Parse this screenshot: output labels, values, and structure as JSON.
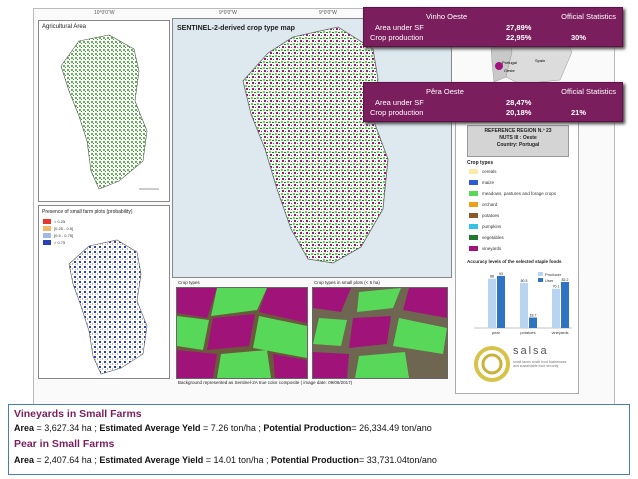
{
  "poster": {
    "coords_top": [
      "10°0'0\"W",
      "9°0'0\"W",
      "9°0'0\"W"
    ],
    "left_top_title": "Agricultural Area",
    "left_bottom_title": "Presence of small farm plots (probability)",
    "prob_legend": [
      {
        "label": "< 0.25",
        "color": "#e8352e"
      },
      {
        "label": "[0.25 - 0.5[",
        "color": "#f4b565"
      },
      {
        "label": "[0.5 - 0.75[",
        "color": "#9fb8e6"
      },
      {
        "label": "> 0.75",
        "color": "#2740b8"
      }
    ],
    "map_title": "SENTINEL-2-derived crop type map",
    "photo_left_title": "Crop types",
    "photo_right_title": "Crop types in small plots (< 5 ha)",
    "caption": "Background represented as Sentinel-2A true color composite ( image date: 09/06/2017)",
    "ref_region": [
      "REFERENCE REGION N.º 23",
      "NUTS III : Oeste",
      "Country: Portugal"
    ],
    "legend_heading": "Crop types",
    "crop_types": [
      {
        "label": "cereals",
        "color": "#ffe9a8"
      },
      {
        "label": "maize",
        "color": "#2d5bd8"
      },
      {
        "label": "meadows, pastures and forage crops",
        "color": "#58d858"
      },
      {
        "label": "orchard",
        "color": "#f0a018"
      },
      {
        "label": "potatoes",
        "color": "#8a5a28"
      },
      {
        "label": "pumpkins",
        "color": "#34c0e8"
      },
      {
        "label": "vegetables",
        "color": "#1e7a2e"
      },
      {
        "label": "vineyards",
        "color": "#a0147a"
      }
    ],
    "accuracy_title": "Accuracy levels of the selected staple foods",
    "accuracy_legend": [
      "Producer",
      "User"
    ],
    "inset_labels": [
      "Portugal",
      "Spain",
      "Oeste"
    ],
    "salsa_word": "salsa",
    "salsa_sub": "small farms small food businesses and sustainable food security"
  },
  "chart_data": {
    "type": "bar",
    "categories": [
      "pear",
      "potatoes",
      "vineyards"
    ],
    "series": [
      {
        "name": "Producer",
        "values": [
          88,
          80.5,
          70.1
        ],
        "color": "#b9d4ee"
      },
      {
        "name": "User",
        "values": [
          93,
          18.7,
          82.2
        ],
        "color": "#2f74c4"
      }
    ],
    "ylim": [
      0,
      100
    ]
  },
  "stats": [
    {
      "title": "Vinho Oeste",
      "official": "Official Statistics",
      "row1_label": "Area under SF",
      "row1_value": "27,89%",
      "row2_label": "Crop production",
      "row2_value": "22,95%",
      "row2_official": "30%"
    },
    {
      "title": "Pêra Oeste",
      "official": "Official Statistics",
      "row1_label": "Area under SF",
      "row1_value": "28,47%",
      "row2_label": "Crop production",
      "row2_value": "20,18%",
      "row2_official": "21%"
    }
  ],
  "bottom": {
    "vineyards_head": "Vineyards in Small Farms",
    "vineyards_line": [
      {
        "t": "Area",
        "b": true
      },
      {
        "t": " = 3,627.34 ha ; ",
        "b": false
      },
      {
        "t": "Estimated Average Yeld",
        "b": true
      },
      {
        "t": " = 7.26 ton/ha ; ",
        "b": false
      },
      {
        "t": "Potential Production",
        "b": true
      },
      {
        "t": "= 26,334.49 ton/ano",
        "b": false
      }
    ],
    "pear_head": "Pear in Small Farms",
    "pear_line": [
      {
        "t": "Area",
        "b": true
      },
      {
        "t": " = 2,407.64 ha ; ",
        "b": false
      },
      {
        "t": "Estimated Average Yield",
        "b": true
      },
      {
        "t": " = 14.01 ton/ha ; ",
        "b": false
      },
      {
        "t": "Potential Production",
        "b": true
      },
      {
        "t": "= 33,731.04ton/ano",
        "b": false
      }
    ]
  }
}
